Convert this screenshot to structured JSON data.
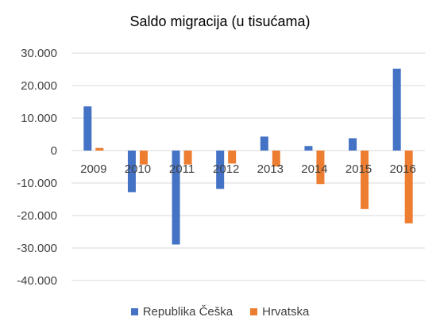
{
  "chart_data": {
    "type": "bar",
    "title": "Saldo migracija (u tisućama)",
    "xlabel": "",
    "ylabel": "",
    "categories": [
      "2009",
      "2010",
      "2011",
      "2012",
      "2013",
      "2014",
      "2015",
      "2016"
    ],
    "series": [
      {
        "name": "Republika Češka",
        "color": "#4472C4",
        "values": [
          13600,
          -12800,
          -28900,
          -11800,
          4300,
          1400,
          3800,
          25200
        ]
      },
      {
        "name": "Hrvatska",
        "color": "#ED7D31",
        "values": [
          800,
          -4300,
          -4300,
          -4000,
          -4900,
          -10300,
          -18000,
          -22400
        ]
      }
    ],
    "ylim": [
      -40000,
      30000
    ],
    "yticks": [
      30000,
      20000,
      10000,
      0,
      -10000,
      -20000,
      -30000,
      -40000
    ],
    "ytick_labels": [
      "30.000",
      "20.000",
      "10.000",
      "0",
      "-10.000",
      "-20.000",
      "-30.000",
      "-40.000"
    ],
    "grid": true,
    "legend_position": "bottom",
    "gridline_color": "#D9D9D9"
  }
}
